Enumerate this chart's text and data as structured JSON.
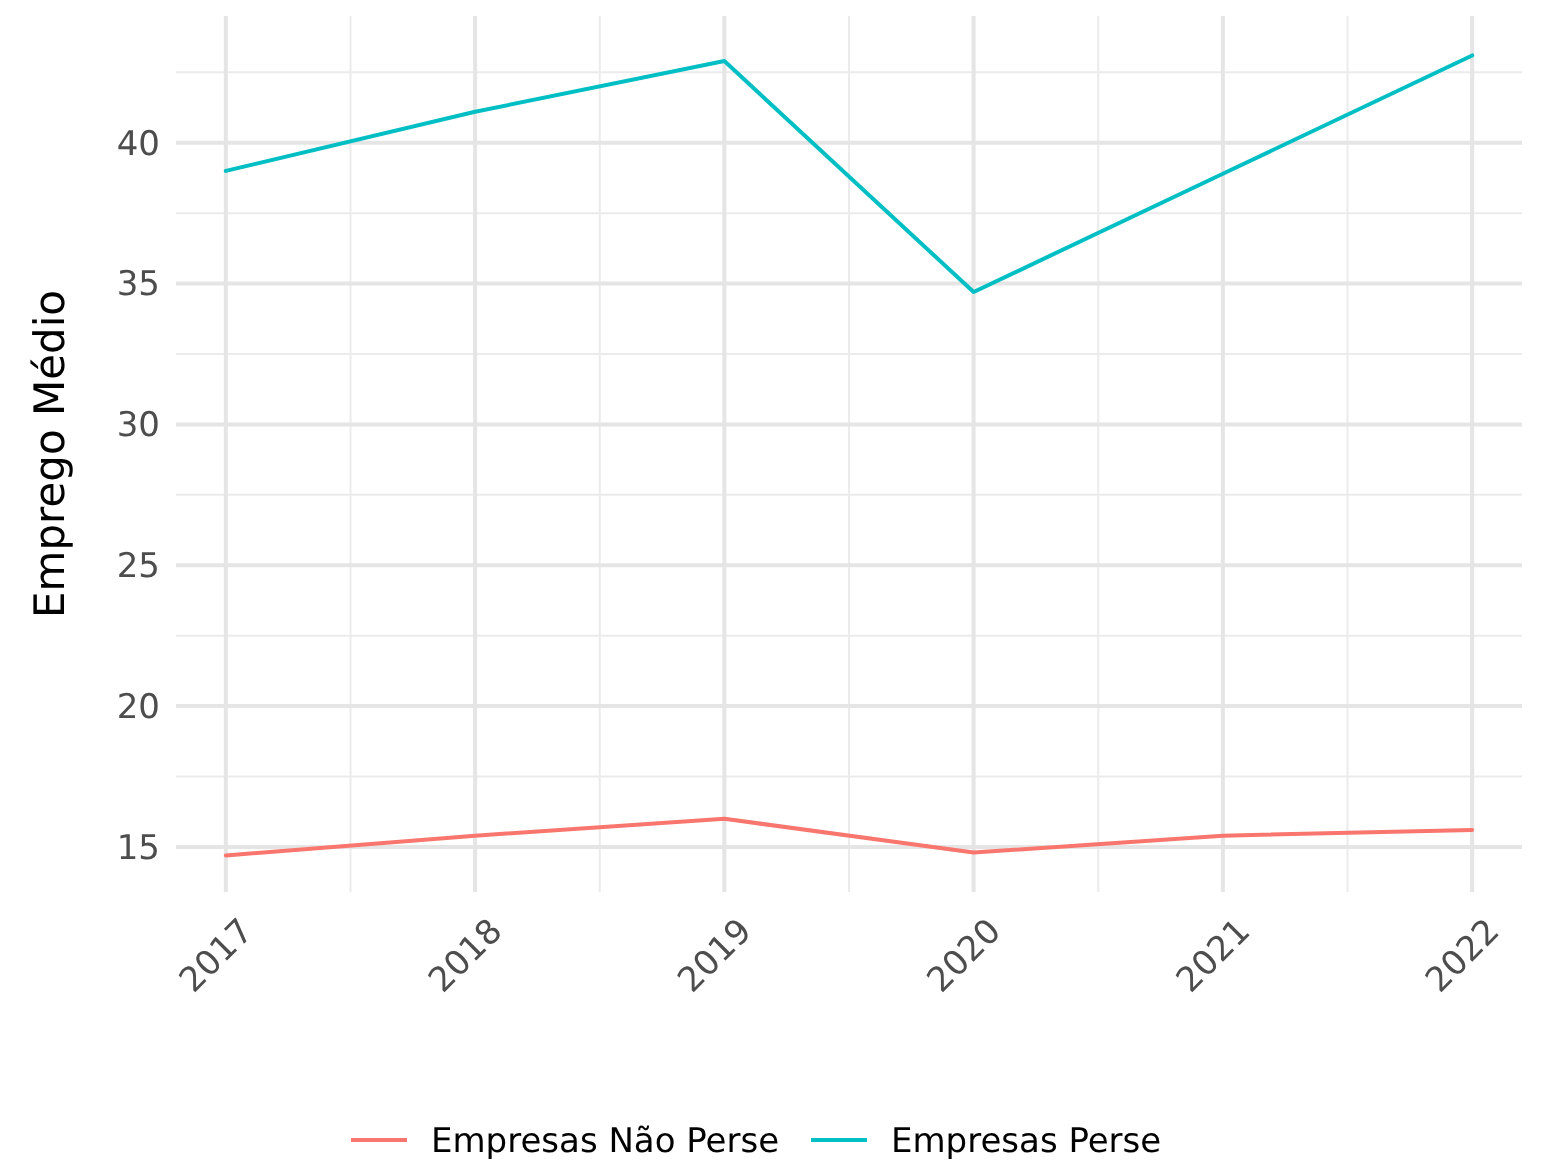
{
  "chart_data": {
    "type": "line",
    "ylabel": "Emprego Médio",
    "x": [
      2017,
      2018,
      2019,
      2020,
      2021,
      2022
    ],
    "series": [
      {
        "name": "Empresas Não Perse",
        "color": "#f8766d",
        "values": [
          14.7,
          15.4,
          16.0,
          14.8,
          15.4,
          15.6
        ]
      },
      {
        "name": "Empresas Perse",
        "color": "#00bfc4",
        "values": [
          39.0,
          41.1,
          42.9,
          34.7,
          38.9,
          43.1
        ]
      }
    ],
    "xlim": [
      2016.8,
      2022.2
    ],
    "xticks": [
      2017,
      2018,
      2019,
      2020,
      2021,
      2022
    ],
    "ylim": [
      13.4,
      44.5
    ],
    "yticks": [
      15,
      20,
      25,
      30,
      35,
      40
    ],
    "grid": true,
    "legend": "bottom",
    "line_style": "solid",
    "marker": "none"
  }
}
